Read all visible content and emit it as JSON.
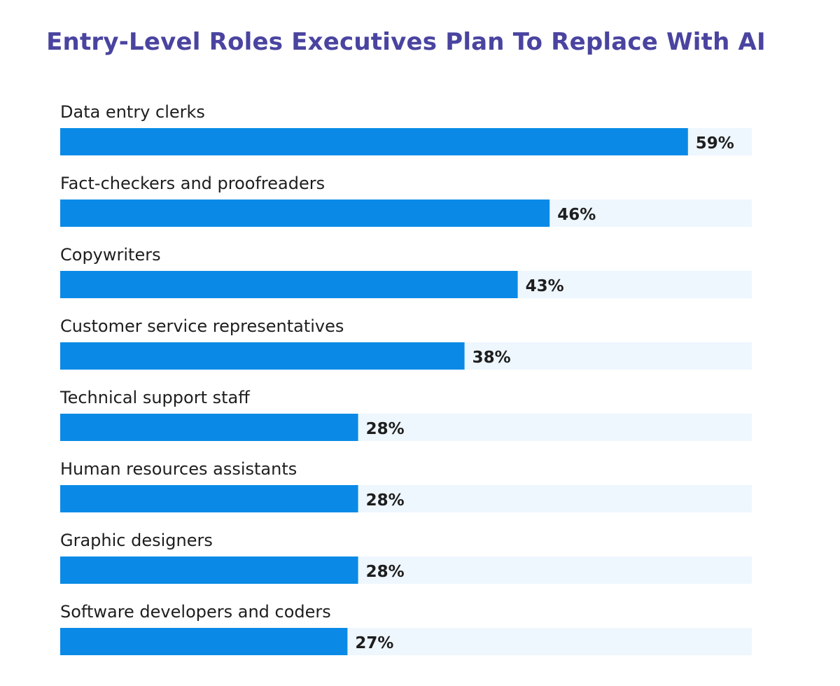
{
  "chart_data": {
    "type": "bar",
    "orientation": "horizontal",
    "title": "Entry-Level Roles Executives Plan To Replace With AI",
    "categories": [
      "Data entry clerks",
      "Fact-checkers and proofreaders",
      "Copywriters",
      "Customer service representatives",
      "Technical support staff",
      "Human resources assistants",
      "Graphic designers",
      "Software developers and coders"
    ],
    "values": [
      59,
      46,
      43,
      38,
      28,
      28,
      28,
      27
    ],
    "value_labels": [
      "59%",
      "46%",
      "43%",
      "38%",
      "28%",
      "28%",
      "28%",
      "27%"
    ],
    "unit": "%",
    "xlim": [
      0,
      65
    ],
    "grid": false,
    "legend": "none",
    "colors": {
      "bar": "#0a8ae6",
      "track": "#eef6fe",
      "title": "#4a44a0",
      "text": "#1e1e1e"
    }
  }
}
